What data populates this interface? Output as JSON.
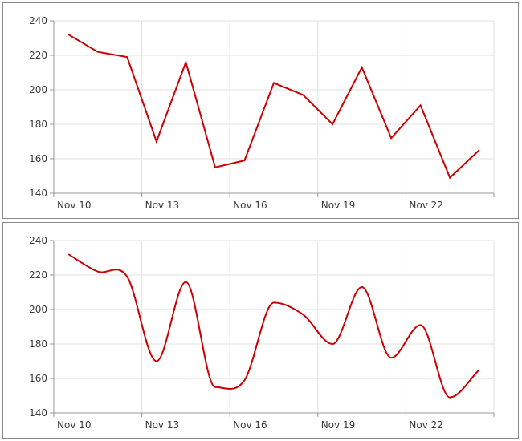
{
  "chart_data": [
    {
      "type": "line",
      "interpolation": "linear",
      "categories": [
        "Nov 10",
        "Nov 11",
        "Nov 12",
        "Nov 13",
        "Nov 14",
        "Nov 15",
        "Nov 16",
        "Nov 17",
        "Nov 18",
        "Nov 19",
        "Nov 20",
        "Nov 21",
        "Nov 22",
        "Nov 23",
        "Nov 24"
      ],
      "x_tick_labels": [
        "Nov 10",
        "Nov 13",
        "Nov 16",
        "Nov 19",
        "Nov 22"
      ],
      "values": [
        232,
        222,
        219,
        170,
        216,
        155,
        159,
        204,
        197,
        180,
        213,
        172,
        191,
        149,
        165
      ],
      "ylim": [
        140,
        240
      ],
      "y_ticks": [
        140,
        160,
        180,
        200,
        220,
        240
      ],
      "grid": true,
      "color": "#cc0000"
    },
    {
      "type": "line",
      "interpolation": "smooth",
      "categories": [
        "Nov 10",
        "Nov 11",
        "Nov 12",
        "Nov 13",
        "Nov 14",
        "Nov 15",
        "Nov 16",
        "Nov 17",
        "Nov 18",
        "Nov 19",
        "Nov 20",
        "Nov 21",
        "Nov 22",
        "Nov 23",
        "Nov 24"
      ],
      "x_tick_labels": [
        "Nov 10",
        "Nov 13",
        "Nov 16",
        "Nov 19",
        "Nov 22"
      ],
      "values": [
        232,
        222,
        219,
        170,
        216,
        155,
        159,
        204,
        197,
        180,
        213,
        172,
        191,
        149,
        165
      ],
      "ylim": [
        140,
        240
      ],
      "y_ticks": [
        140,
        160,
        180,
        200,
        220,
        240
      ],
      "grid": true,
      "color": "#cc0000"
    }
  ]
}
